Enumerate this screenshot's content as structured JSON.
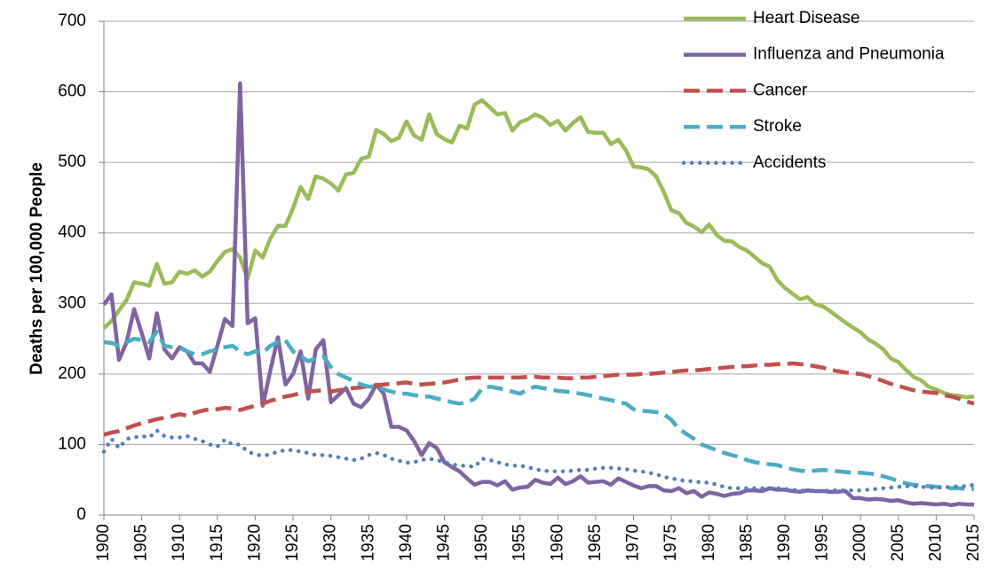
{
  "chart_data": {
    "type": "line",
    "ylabel": "Deaths per 100,000 People",
    "x": [
      1900,
      1901,
      1902,
      1903,
      1904,
      1905,
      1906,
      1907,
      1908,
      1909,
      1910,
      1911,
      1912,
      1913,
      1914,
      1915,
      1916,
      1917,
      1918,
      1919,
      1920,
      1921,
      1922,
      1923,
      1924,
      1925,
      1926,
      1927,
      1928,
      1929,
      1930,
      1931,
      1932,
      1933,
      1934,
      1935,
      1936,
      1937,
      1938,
      1939,
      1940,
      1941,
      1942,
      1943,
      1944,
      1945,
      1946,
      1947,
      1948,
      1949,
      1950,
      1951,
      1952,
      1953,
      1954,
      1955,
      1956,
      1957,
      1958,
      1959,
      1960,
      1961,
      1962,
      1963,
      1964,
      1965,
      1966,
      1967,
      1968,
      1969,
      1970,
      1971,
      1972,
      1973,
      1974,
      1975,
      1976,
      1977,
      1978,
      1979,
      1980,
      1981,
      1982,
      1983,
      1984,
      1985,
      1986,
      1987,
      1988,
      1989,
      1990,
      1991,
      1992,
      1993,
      1994,
      1995,
      1996,
      1997,
      1998,
      1999,
      2000,
      2001,
      2002,
      2003,
      2004,
      2005,
      2006,
      2007,
      2008,
      2009,
      2010,
      2011,
      2012,
      2013,
      2014,
      2015
    ],
    "xlim": [
      1900,
      2015
    ],
    "xticks": [
      1900,
      1905,
      1910,
      1915,
      1920,
      1925,
      1930,
      1935,
      1940,
      1945,
      1950,
      1955,
      1960,
      1965,
      1970,
      1975,
      1980,
      1985,
      1990,
      1995,
      2000,
      2005,
      2010,
      2015
    ],
    "ylim": [
      0,
      700
    ],
    "yticks": [
      0,
      100,
      200,
      300,
      400,
      500,
      600,
      700
    ],
    "grid": true,
    "legend": "upper right",
    "series": [
      {
        "name": "Heart Disease",
        "color": "#9bbb59",
        "line_style": "solid",
        "values": [
          265,
          275,
          290,
          305,
          330,
          328,
          325,
          356,
          328,
          330,
          345,
          342,
          347,
          338,
          345,
          360,
          373,
          377,
          365,
          335,
          375,
          365,
          392,
          410,
          410,
          435,
          465,
          448,
          480,
          477,
          470,
          460,
          483,
          485,
          505,
          508,
          546,
          540,
          530,
          535,
          558,
          538,
          532,
          568,
          540,
          533,
          528,
          552,
          548,
          582,
          588,
          578,
          568,
          570,
          545,
          557,
          561,
          568,
          563,
          553,
          559,
          545,
          556,
          564,
          543,
          542,
          542,
          526,
          532,
          517,
          494,
          493,
          490,
          480,
          458,
          432,
          428,
          414,
          409,
          401,
          412,
          397,
          389,
          388,
          380,
          375,
          366,
          357,
          352,
          333,
          322,
          314,
          306,
          309,
          299,
          296,
          289,
          281,
          273,
          266,
          259,
          249,
          243,
          235,
          222,
          217,
          206,
          196,
          191,
          182,
          178,
          173,
          170,
          169,
          167,
          168
        ]
      },
      {
        "name": "Influenza and Pneumonia",
        "color": "#8064a2",
        "line_style": "solid",
        "values": [
          298,
          313,
          220,
          245,
          292,
          258,
          222,
          286,
          235,
          222,
          238,
          232,
          215,
          215,
          203,
          240,
          278,
          268,
          612,
          272,
          279,
          155,
          205,
          252,
          185,
          200,
          232,
          165,
          235,
          248,
          160,
          170,
          180,
          158,
          153,
          165,
          185,
          172,
          125,
          125,
          120,
          105,
          85,
          102,
          95,
          75,
          68,
          62,
          52,
          43,
          47,
          47,
          42,
          48,
          36,
          39,
          40,
          50,
          46,
          44,
          53,
          44,
          48,
          55,
          46,
          47,
          48,
          43,
          52,
          47,
          42,
          38,
          41,
          41,
          35,
          34,
          38,
          31,
          34,
          26,
          32,
          30,
          27,
          30,
          31,
          35,
          35,
          34,
          38,
          36,
          36,
          34,
          33,
          35,
          34,
          34,
          33,
          33,
          34,
          24,
          24,
          22,
          23,
          22,
          20,
          21,
          18,
          16,
          17,
          16,
          15,
          16,
          14,
          16,
          15,
          15
        ]
      },
      {
        "name": "Cancer",
        "color": "#c0504d",
        "line_style": "dashed",
        "values": [
          114,
          117,
          119,
          123,
          127,
          130,
          133,
          136,
          138,
          140,
          143,
          141,
          145,
          148,
          150,
          150,
          152,
          151,
          149,
          152,
          155,
          158,
          162,
          165,
          168,
          170,
          173,
          175,
          176,
          177,
          175,
          177,
          178,
          180,
          181,
          183,
          184,
          185,
          186,
          187,
          188,
          186,
          185,
          186,
          187,
          188,
          190,
          192,
          194,
          195,
          195,
          195,
          195,
          195,
          195,
          195,
          196,
          196,
          195,
          195,
          195,
          194,
          194,
          195,
          195,
          196,
          197,
          198,
          199,
          199,
          199,
          200,
          200,
          201,
          202,
          203,
          204,
          205,
          205,
          206,
          207,
          208,
          209,
          210,
          211,
          211,
          212,
          213,
          213,
          214,
          214,
          215,
          214,
          213,
          211,
          209,
          206,
          204,
          202,
          201,
          200,
          197,
          194,
          190,
          186,
          183,
          180,
          177,
          175,
          174,
          173,
          170,
          168,
          165,
          161,
          158
        ]
      },
      {
        "name": "Stroke",
        "color": "#4bacc6",
        "line_style": "dashed",
        "values": [
          245,
          244,
          240,
          245,
          250,
          248,
          245,
          260,
          240,
          238,
          237,
          232,
          228,
          228,
          232,
          235,
          238,
          240,
          232,
          228,
          232,
          230,
          240,
          245,
          248,
          232,
          225,
          218,
          222,
          225,
          210,
          200,
          195,
          190,
          185,
          182,
          182,
          178,
          175,
          172,
          172,
          170,
          168,
          168,
          165,
          163,
          160,
          158,
          160,
          165,
          180,
          182,
          180,
          178,
          175,
          172,
          178,
          182,
          180,
          178,
          176,
          175,
          174,
          172,
          170,
          168,
          165,
          163,
          160,
          158,
          150,
          148,
          147,
          146,
          143,
          135,
          122,
          115,
          108,
          100,
          96,
          92,
          88,
          85,
          82,
          78,
          75,
          73,
          72,
          71,
          67,
          65,
          63,
          62,
          63,
          64,
          63,
          62,
          61,
          60,
          60,
          59,
          58,
          55,
          52,
          48,
          45,
          43,
          42,
          41,
          40,
          39,
          38,
          38,
          37,
          37
        ]
      },
      {
        "name": "Accidents",
        "color": "#4f81bd",
        "line_style": "dotted",
        "values": [
          90,
          108,
          95,
          108,
          110,
          112,
          110,
          120,
          112,
          110,
          110,
          112,
          108,
          105,
          100,
          97,
          107,
          100,
          100,
          90,
          86,
          84,
          86,
          90,
          92,
          92,
          90,
          88,
          85,
          85,
          84,
          82,
          80,
          78,
          80,
          85,
          88,
          85,
          80,
          77,
          74,
          75,
          78,
          80,
          78,
          75,
          72,
          70,
          70,
          68,
          80,
          78,
          75,
          72,
          70,
          70,
          68,
          65,
          63,
          62,
          62,
          62,
          63,
          64,
          64,
          66,
          67,
          67,
          66,
          65,
          63,
          62,
          60,
          58,
          54,
          52,
          50,
          48,
          48,
          46,
          46,
          43,
          40,
          38,
          38,
          38,
          38,
          38,
          38,
          38,
          37,
          36,
          35,
          34,
          34,
          34,
          35,
          35,
          35,
          35,
          35,
          36,
          37,
          38,
          39,
          40,
          41,
          41,
          40,
          39,
          39,
          39,
          40,
          41,
          41,
          43
        ]
      }
    ]
  }
}
